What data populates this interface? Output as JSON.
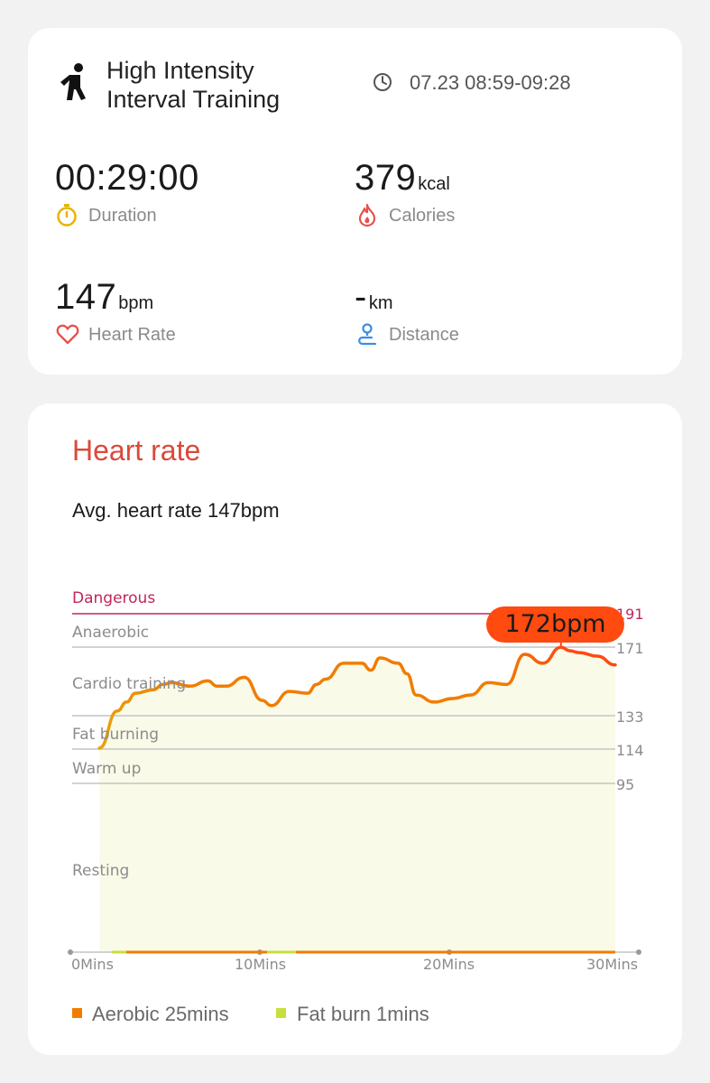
{
  "workout": {
    "title_line1": "High Intensity",
    "title_line2": "Interval Training",
    "time_range": "07.23 08:59-09:28"
  },
  "stats": {
    "duration_value": "00:29:00",
    "duration_label": "Duration",
    "calories_value": "379",
    "calories_unit": "kcal",
    "calories_label": "Calories",
    "heart_rate_value": "147",
    "heart_rate_unit": "bpm",
    "heart_rate_label": "Heart Rate",
    "distance_value": "-",
    "distance_unit": "km",
    "distance_label": "Distance"
  },
  "heart_rate_section": {
    "title": "Heart rate",
    "avg_text": "Avg. heart rate 147bpm",
    "peak_badge": "172bpm"
  },
  "zones": [
    {
      "label": "Dangerous",
      "threshold": "191"
    },
    {
      "label": "Anaerobic",
      "threshold": "171"
    },
    {
      "label": "Cardio training",
      "threshold": "133"
    },
    {
      "label": "Fat burning",
      "threshold": "114"
    },
    {
      "label": "Warm up",
      "threshold": "95"
    },
    {
      "label": "Resting",
      "threshold": ""
    }
  ],
  "legend": [
    {
      "label": "Aerobic 25mins",
      "color": "#f07d00"
    },
    {
      "label": "Fat burn 1mins",
      "color": "#c8de3c"
    }
  ],
  "colors": {
    "accent_red": "#d94a3a",
    "danger_line": "#c2255c",
    "line_low": "#e8a30c",
    "line_mid": "#f07d00",
    "line_high": "#ff4a10",
    "area_fill": "#fafae8"
  },
  "chart_data": {
    "type": "line",
    "x_unit": "min",
    "xlim": [
      0,
      30
    ],
    "x_ticks": [
      "0Mins",
      "10Mins",
      "20Mins",
      "30Mins"
    ],
    "y_ticks": [
      95,
      114,
      133,
      171,
      191
    ],
    "series": [
      {
        "x": [
          1.5,
          2.5,
          3,
          3.5,
          4.5,
          5,
          5.5,
          6.5,
          7.5,
          8,
          8.5,
          9.5,
          10.5,
          11,
          12,
          13,
          13.5,
          14,
          15,
          16,
          16.5,
          17,
          18,
          18.5,
          19,
          20,
          21,
          22,
          23,
          24,
          25,
          26,
          27,
          27.5,
          28,
          29,
          30
        ],
        "y": [
          115,
          136,
          141,
          146,
          148,
          151,
          152,
          150,
          153,
          150,
          150,
          155,
          142,
          139,
          147,
          146,
          151,
          154,
          163,
          163,
          159,
          166,
          163,
          157,
          145,
          141,
          143,
          145,
          152,
          151,
          168,
          163,
          172,
          170,
          169,
          167,
          162
        ]
      }
    ],
    "peak": {
      "x": 27,
      "y": 172,
      "label": "172bpm"
    }
  }
}
